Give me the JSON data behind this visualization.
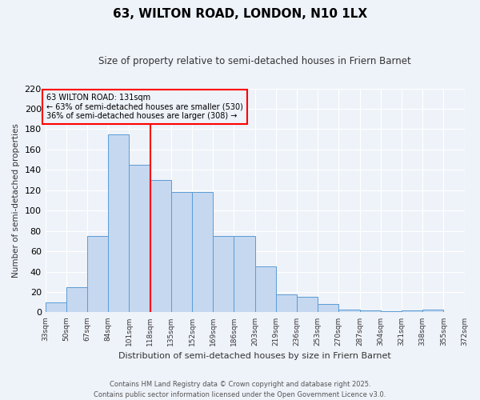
{
  "title": "63, WILTON ROAD, LONDON, N10 1LX",
  "subtitle": "Size of property relative to semi-detached houses in Friern Barnet",
  "xlabel": "Distribution of semi-detached houses by size in Friern Barnet",
  "ylabel": "Number of semi-detached properties",
  "bar_heights": [
    10,
    25,
    75,
    175,
    145,
    130,
    118,
    118,
    75,
    75,
    45,
    18,
    15,
    8,
    3,
    2,
    1,
    2,
    3,
    0
  ],
  "categories": [
    "33sqm",
    "50sqm",
    "67sqm",
    "84sqm",
    "101sqm",
    "118sqm",
    "135sqm",
    "152sqm",
    "169sqm",
    "186sqm",
    "203sqm",
    "219sqm",
    "236sqm",
    "253sqm",
    "270sqm",
    "287sqm",
    "304sqm",
    "321sqm",
    "338sqm",
    "355sqm",
    "372sqm"
  ],
  "bar_color": "#c5d8f0",
  "bar_edge_color": "#5b9bd5",
  "vline_color": "red",
  "vline_x": 5.0,
  "annotation_title": "63 WILTON ROAD: 131sqm",
  "annotation_line1": "← 63% of semi-detached houses are smaller (530)",
  "annotation_line2": "36% of semi-detached houses are larger (308) →",
  "annotation_box_color": "red",
  "ylim": [
    0,
    220
  ],
  "yticks": [
    0,
    20,
    40,
    60,
    80,
    100,
    120,
    140,
    160,
    180,
    200,
    220
  ],
  "footer": "Contains HM Land Registry data © Crown copyright and database right 2025.\nContains public sector information licensed under the Open Government Licence v3.0.",
  "bg_color": "#eef2f9"
}
